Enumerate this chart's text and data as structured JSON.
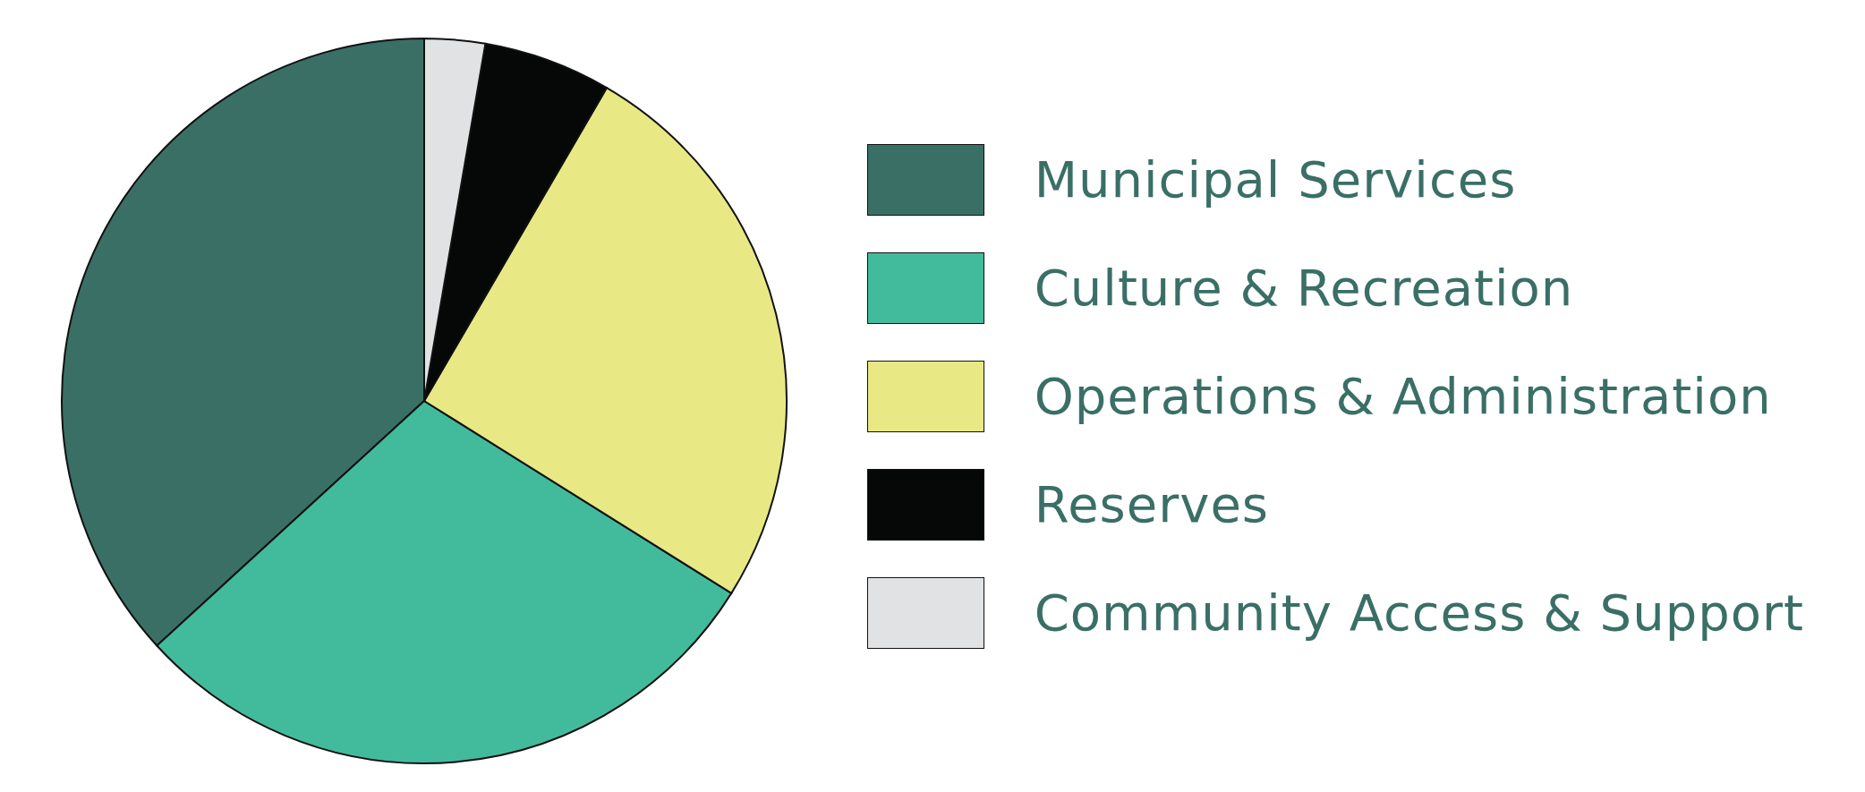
{
  "chart_data": {
    "type": "pie",
    "categories": [
      "Municipal Services",
      "Culture & Recreation",
      "Operations & Administration",
      "Reserves",
      "Community Access & Support"
    ],
    "values": [
      36.8,
      29.3,
      25.5,
      5.7,
      2.7
    ],
    "colors": [
      "#3a6f66",
      "#42bb9c",
      "#e8e985",
      "#050807",
      "#e1e2e3"
    ],
    "legend": "right"
  }
}
